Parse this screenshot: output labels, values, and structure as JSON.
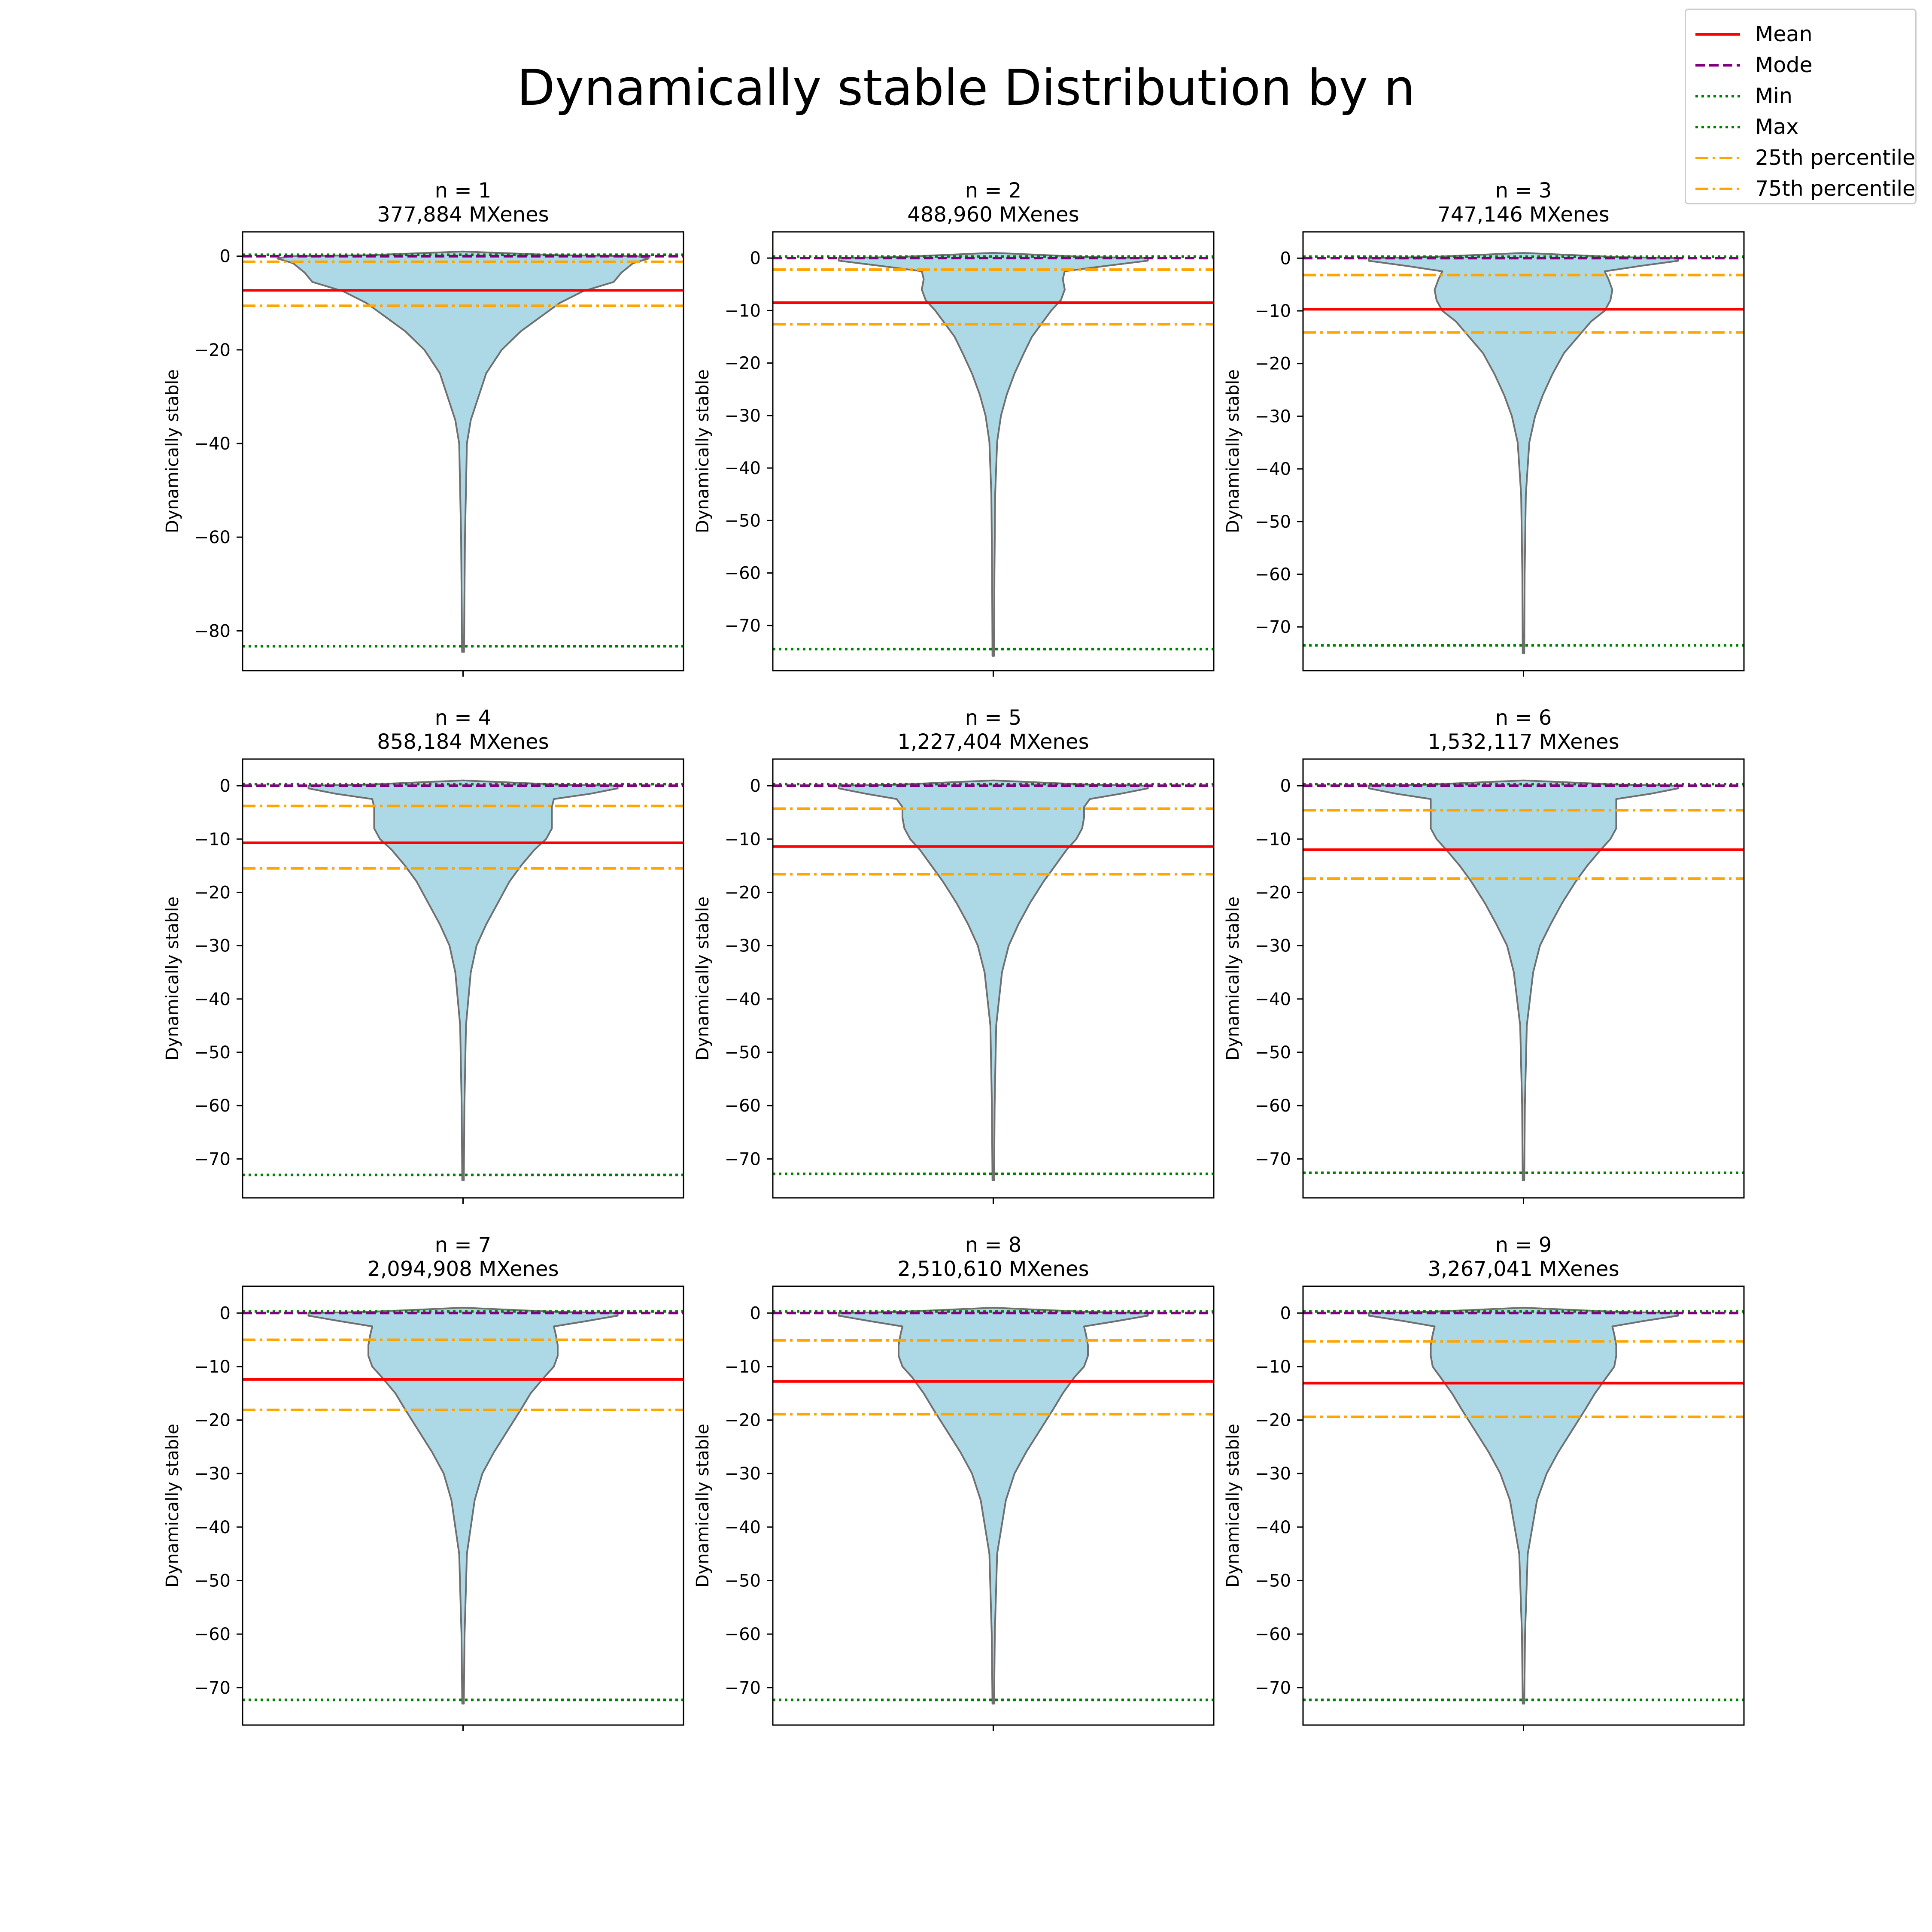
{
  "title": "Dynamically stable Distribution by n",
  "legend": [
    {
      "label": "Mean",
      "color": "#ff0000",
      "dash": "solid"
    },
    {
      "label": "Mode",
      "color": "#800080",
      "dash": "dashed"
    },
    {
      "label": "Min",
      "color": "#008000",
      "dash": "dotted"
    },
    {
      "label": "Max",
      "color": "#008000",
      "dash": "dotted"
    },
    {
      "label": "25th percentile",
      "color": "#ffa500",
      "dash": "dashdot"
    },
    {
      "label": "75th percentile",
      "color": "#ffa500",
      "dash": "dashdot"
    }
  ],
  "colors": {
    "violin_fill": "#add8e6",
    "violin_edge": "#6f6f6f"
  },
  "chart_data": [
    {
      "type": "violin",
      "title": "n = 1",
      "subtitle": "377,884 MXenes",
      "ylabel": "Dynamically stable",
      "ylim": [
        -88.5,
        5.2
      ],
      "yticks": [
        0,
        -20,
        -40,
        -60,
        -80
      ],
      "stats": {
        "mean": -7.3,
        "mode": 0,
        "min": -83.3,
        "max": 0.3,
        "p25": -10.6,
        "p75": -1.2
      },
      "profile": [
        [
          1.0,
          0.0
        ],
        [
          0.2,
          0.5
        ],
        [
          0,
          0.9
        ],
        [
          -0.5,
          0.96
        ],
        [
          -1.5,
          0.88
        ],
        [
          -3.5,
          0.82
        ],
        [
          -5.5,
          0.78
        ],
        [
          -7.5,
          0.62
        ],
        [
          -10,
          0.5
        ],
        [
          -13,
          0.4
        ],
        [
          -16,
          0.3
        ],
        [
          -20,
          0.2
        ],
        [
          -25,
          0.12
        ],
        [
          -30,
          0.08
        ],
        [
          -35,
          0.04
        ],
        [
          -40,
          0.02
        ],
        [
          -60,
          0.01
        ],
        [
          -84.5,
          0.005
        ]
      ]
    },
    {
      "type": "violin",
      "title": "n = 2",
      "subtitle": "488,960 MXenes",
      "ylabel": "Dynamically stable",
      "ylim": [
        -78.6,
        5.0
      ],
      "yticks": [
        0,
        -10,
        -20,
        -30,
        -40,
        -50,
        -60,
        -70
      ],
      "stats": {
        "mean": -8.5,
        "mode": 0,
        "min": -74.5,
        "max": 0.3,
        "p25": -12.6,
        "p75": -2.2
      },
      "profile": [
        [
          1.0,
          0.0
        ],
        [
          0.2,
          0.5
        ],
        [
          0,
          0.8
        ],
        [
          -0.5,
          0.8
        ],
        [
          -1.5,
          0.58
        ],
        [
          -2.5,
          0.37
        ],
        [
          -4,
          0.36
        ],
        [
          -6,
          0.37
        ],
        [
          -8,
          0.35
        ],
        [
          -10,
          0.3
        ],
        [
          -12,
          0.26
        ],
        [
          -15,
          0.2
        ],
        [
          -18,
          0.16
        ],
        [
          -22,
          0.11
        ],
        [
          -26,
          0.07
        ],
        [
          -30,
          0.04
        ],
        [
          -35,
          0.02
        ],
        [
          -45,
          0.01
        ],
        [
          -60,
          0.006
        ],
        [
          -75.8,
          0.004
        ]
      ]
    },
    {
      "type": "violin",
      "title": "n = 3",
      "subtitle": "747,146 MXenes",
      "ylabel": "Dynamically stable",
      "ylim": [
        -78.3,
        5.0
      ],
      "yticks": [
        0,
        -10,
        -20,
        -30,
        -40,
        -50,
        -60,
        -70
      ],
      "stats": {
        "mean": -9.7,
        "mode": 0,
        "min": -73.5,
        "max": 0.3,
        "p25": -14.1,
        "p75": -3.2
      },
      "profile": [
        [
          1.0,
          0.0
        ],
        [
          0.2,
          0.5
        ],
        [
          0,
          0.8
        ],
        [
          -0.5,
          0.8
        ],
        [
          -1.5,
          0.6
        ],
        [
          -2.5,
          0.42
        ],
        [
          -4,
          0.44
        ],
        [
          -6,
          0.46
        ],
        [
          -8,
          0.45
        ],
        [
          -10,
          0.42
        ],
        [
          -12,
          0.35
        ],
        [
          -15,
          0.28
        ],
        [
          -18,
          0.21
        ],
        [
          -22,
          0.15
        ],
        [
          -26,
          0.1
        ],
        [
          -30,
          0.06
        ],
        [
          -35,
          0.03
        ],
        [
          -45,
          0.012
        ],
        [
          -60,
          0.006
        ],
        [
          -75,
          0.004
        ]
      ]
    },
    {
      "type": "violin",
      "title": "n = 4",
      "subtitle": "858,184 MXenes",
      "ylabel": "Dynamically stable",
      "ylim": [
        -77.3,
        5.0
      ],
      "yticks": [
        0,
        -10,
        -20,
        -30,
        -40,
        -50,
        -60,
        -70
      ],
      "stats": {
        "mean": -10.7,
        "mode": 0,
        "min": -73.0,
        "max": 0.3,
        "p25": -15.5,
        "p75": -3.8
      },
      "profile": [
        [
          1.0,
          0.0
        ],
        [
          0.2,
          0.5
        ],
        [
          0,
          0.8
        ],
        [
          -0.5,
          0.8
        ],
        [
          -1.5,
          0.66
        ],
        [
          -2.5,
          0.47
        ],
        [
          -4,
          0.46
        ],
        [
          -6,
          0.46
        ],
        [
          -8,
          0.46
        ],
        [
          -10,
          0.43
        ],
        [
          -12,
          0.37
        ],
        [
          -15,
          0.3
        ],
        [
          -18,
          0.24
        ],
        [
          -22,
          0.18
        ],
        [
          -26,
          0.12
        ],
        [
          -30,
          0.07
        ],
        [
          -35,
          0.04
        ],
        [
          -45,
          0.015
        ],
        [
          -60,
          0.007
        ],
        [
          -74,
          0.004
        ]
      ]
    },
    {
      "type": "violin",
      "title": "n = 5",
      "subtitle": "1,227,404 MXenes",
      "ylabel": "Dynamically stable",
      "ylim": [
        -77.3,
        5.0
      ],
      "yticks": [
        0,
        -10,
        -20,
        -30,
        -40,
        -50,
        -60,
        -70
      ],
      "stats": {
        "mean": -11.4,
        "mode": 0,
        "min": -72.8,
        "max": 0.3,
        "p25": -16.6,
        "p75": -4.3
      },
      "profile": [
        [
          1.0,
          0.0
        ],
        [
          0.2,
          0.5
        ],
        [
          0,
          0.8
        ],
        [
          -0.5,
          0.8
        ],
        [
          -1.5,
          0.66
        ],
        [
          -2.5,
          0.5
        ],
        [
          -4,
          0.47
        ],
        [
          -6,
          0.47
        ],
        [
          -8,
          0.46
        ],
        [
          -10,
          0.43
        ],
        [
          -12,
          0.38
        ],
        [
          -15,
          0.32
        ],
        [
          -18,
          0.26
        ],
        [
          -22,
          0.19
        ],
        [
          -26,
          0.13
        ],
        [
          -30,
          0.08
        ],
        [
          -35,
          0.045
        ],
        [
          -45,
          0.015
        ],
        [
          -60,
          0.007
        ],
        [
          -74,
          0.004
        ]
      ]
    },
    {
      "type": "violin",
      "title": "n = 6",
      "subtitle": "1,532,117 MXenes",
      "ylabel": "Dynamically stable",
      "ylim": [
        -77.3,
        5.0
      ],
      "yticks": [
        0,
        -10,
        -20,
        -30,
        -40,
        -50,
        -60,
        -70
      ],
      "stats": {
        "mean": -12.0,
        "mode": 0,
        "min": -72.6,
        "max": 0.3,
        "p25": -17.4,
        "p75": -4.6
      },
      "profile": [
        [
          1.0,
          0.0
        ],
        [
          0.2,
          0.5
        ],
        [
          0,
          0.8
        ],
        [
          -0.5,
          0.8
        ],
        [
          -1.5,
          0.66
        ],
        [
          -2.5,
          0.48
        ],
        [
          -4,
          0.48
        ],
        [
          -6,
          0.48
        ],
        [
          -8,
          0.48
        ],
        [
          -10,
          0.45
        ],
        [
          -12,
          0.4
        ],
        [
          -15,
          0.33
        ],
        [
          -18,
          0.27
        ],
        [
          -22,
          0.2
        ],
        [
          -26,
          0.14
        ],
        [
          -30,
          0.085
        ],
        [
          -35,
          0.05
        ],
        [
          -45,
          0.017
        ],
        [
          -60,
          0.007
        ],
        [
          -74,
          0.004
        ]
      ]
    },
    {
      "type": "violin",
      "title": "n = 7",
      "subtitle": "2,094,908 MXenes",
      "ylabel": "Dynamically stable",
      "ylim": [
        -77.0,
        5.0
      ],
      "yticks": [
        0,
        -10,
        -20,
        -30,
        -40,
        -50,
        -60,
        -70
      ],
      "stats": {
        "mean": -12.4,
        "mode": 0,
        "min": -72.3,
        "max": 0.3,
        "p25": -18.1,
        "p75": -5.0
      },
      "profile": [
        [
          1.0,
          0.0
        ],
        [
          0.2,
          0.5
        ],
        [
          0,
          0.8
        ],
        [
          -0.5,
          0.8
        ],
        [
          -1.5,
          0.64
        ],
        [
          -2.5,
          0.47
        ],
        [
          -4,
          0.48
        ],
        [
          -6,
          0.49
        ],
        [
          -8,
          0.49
        ],
        [
          -10,
          0.47
        ],
        [
          -12,
          0.42
        ],
        [
          -15,
          0.35
        ],
        [
          -18,
          0.3
        ],
        [
          -22,
          0.23
        ],
        [
          -26,
          0.16
        ],
        [
          -30,
          0.1
        ],
        [
          -35,
          0.06
        ],
        [
          -45,
          0.02
        ],
        [
          -60,
          0.008
        ],
        [
          -73,
          0.004
        ]
      ]
    },
    {
      "type": "violin",
      "title": "n = 8",
      "subtitle": "2,510,610 MXenes",
      "ylabel": "Dynamically stable",
      "ylim": [
        -77.0,
        5.0
      ],
      "yticks": [
        0,
        -10,
        -20,
        -30,
        -40,
        -50,
        -60,
        -70
      ],
      "stats": {
        "mean": -12.8,
        "mode": 0,
        "min": -72.3,
        "max": 0.3,
        "p25": -18.9,
        "p75": -5.1
      },
      "profile": [
        [
          1.0,
          0.0
        ],
        [
          0.2,
          0.5
        ],
        [
          0,
          0.8
        ],
        [
          -0.5,
          0.8
        ],
        [
          -1.5,
          0.64
        ],
        [
          -2.5,
          0.47
        ],
        [
          -4,
          0.48
        ],
        [
          -6,
          0.49
        ],
        [
          -8,
          0.49
        ],
        [
          -10,
          0.47
        ],
        [
          -12,
          0.42
        ],
        [
          -15,
          0.36
        ],
        [
          -18,
          0.31
        ],
        [
          -22,
          0.24
        ],
        [
          -26,
          0.17
        ],
        [
          -30,
          0.11
        ],
        [
          -35,
          0.065
        ],
        [
          -45,
          0.02
        ],
        [
          -60,
          0.008
        ],
        [
          -73,
          0.004
        ]
      ]
    },
    {
      "type": "violin",
      "title": "n = 9",
      "subtitle": "3,267,041 MXenes",
      "ylabel": "Dynamically stable",
      "ylim": [
        -77.0,
        5.0
      ],
      "yticks": [
        0,
        -10,
        -20,
        -30,
        -40,
        -50,
        -60,
        -70
      ],
      "stats": {
        "mean": -13.1,
        "mode": 0,
        "min": -72.3,
        "max": 0.3,
        "p25": -19.4,
        "p75": -5.3
      },
      "profile": [
        [
          1.0,
          0.0
        ],
        [
          0.2,
          0.5
        ],
        [
          0,
          0.8
        ],
        [
          -0.5,
          0.8
        ],
        [
          -1.5,
          0.62
        ],
        [
          -2.5,
          0.46
        ],
        [
          -4,
          0.47
        ],
        [
          -6,
          0.48
        ],
        [
          -8,
          0.48
        ],
        [
          -10,
          0.47
        ],
        [
          -12,
          0.43
        ],
        [
          -15,
          0.37
        ],
        [
          -18,
          0.32
        ],
        [
          -22,
          0.25
        ],
        [
          -26,
          0.18
        ],
        [
          -30,
          0.12
        ],
        [
          -35,
          0.07
        ],
        [
          -45,
          0.022
        ],
        [
          -60,
          0.008
        ],
        [
          -73,
          0.004
        ]
      ]
    }
  ]
}
